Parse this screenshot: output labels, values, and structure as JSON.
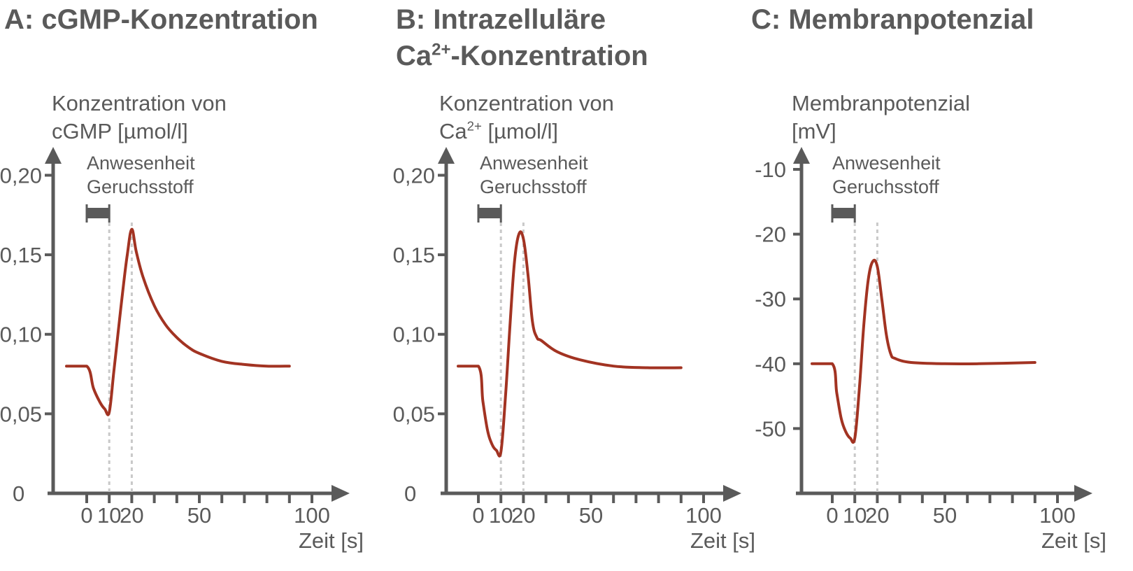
{
  "colors": {
    "curve": "#a23322",
    "axis": "#5a5a5a",
    "guide": "#c9c9c9",
    "bar": "#5a5a5a"
  },
  "panels": [
    {
      "title_lines": [
        "A: cGMP-Konzentration"
      ],
      "ylabel_lines": [
        "Konzentration von",
        "cGMP [µmol/l]"
      ],
      "annotation_lines": [
        "Anwesenheit",
        "Geruchsstoff"
      ],
      "xlabel": "Zeit [s]"
    },
    {
      "title_lines": [
        "B: Intrazelluläre",
        "Ca²⁺-Konzentration"
      ],
      "ylabel_lines": [
        "Konzentration von",
        "Ca²⁺ [µmol/l]"
      ],
      "annotation_lines": [
        "Anwesenheit",
        "Geruchsstoff"
      ],
      "xlabel": "Zeit [s]"
    },
    {
      "title_lines": [
        "C: Membranpotenzial"
      ],
      "ylabel_lines": [
        "Membranpotenzial",
        "[mV]"
      ],
      "annotation_lines": [
        "Anwesenheit",
        "Geruchsstoff"
      ],
      "xlabel": "Zeit [s]"
    }
  ],
  "chart_data": [
    {
      "type": "line",
      "title": "A: cGMP-Konzentration",
      "ylabel": "Konzentration von cGMP [µmol/l]",
      "xlabel": "Zeit [s]",
      "x_ticks": [
        0,
        10,
        20,
        50,
        100
      ],
      "y_ticks": [
        0,
        0.05,
        0.1,
        0.15,
        0.2
      ],
      "y_tick_labels": [
        "0",
        "0,05",
        "0,10",
        "0,15",
        "0,20"
      ],
      "xlim": [
        -16,
        115
      ],
      "ylim": [
        0,
        0.22
      ],
      "stimulus_interval": [
        0,
        10
      ],
      "guide_lines_x": [
        10,
        20
      ],
      "series": [
        {
          "x": [
            -9,
            0,
            3,
            6,
            8,
            10,
            12,
            14,
            16,
            18,
            20,
            22,
            25,
            30,
            35,
            40,
            45,
            50,
            60,
            70,
            80,
            90
          ],
          "y": [
            0.08,
            0.08,
            0.066,
            0.057,
            0.053,
            0.051,
            0.076,
            0.102,
            0.127,
            0.15,
            0.166,
            0.152,
            0.136,
            0.118,
            0.106,
            0.098,
            0.092,
            0.088,
            0.083,
            0.081,
            0.08,
            0.08
          ]
        }
      ]
    },
    {
      "type": "line",
      "title": "B: Intrazelluläre Ca²⁺-Konzentration",
      "ylabel": "Konzentration von Ca²⁺ [µmol/l]",
      "xlabel": "Zeit [s]",
      "x_ticks": [
        0,
        10,
        20,
        50,
        100
      ],
      "y_ticks": [
        0,
        0.05,
        0.1,
        0.15,
        0.2
      ],
      "y_tick_labels": [
        "0",
        "0,05",
        "0,10",
        "0,15",
        "0,20"
      ],
      "xlim": [
        -16,
        115
      ],
      "ylim": [
        0,
        0.22
      ],
      "stimulus_interval": [
        0,
        10
      ],
      "guide_lines_x": [
        10,
        20
      ],
      "series": [
        {
          "x": [
            -9,
            0,
            2,
            4,
            6,
            8,
            10,
            12,
            14,
            16,
            18,
            20,
            22,
            24,
            26,
            28,
            35,
            45,
            60,
            75,
            90
          ],
          "y": [
            0.08,
            0.08,
            0.058,
            0.04,
            0.031,
            0.027,
            0.026,
            0.06,
            0.105,
            0.145,
            0.163,
            0.16,
            0.138,
            0.108,
            0.098,
            0.096,
            0.089,
            0.084,
            0.08,
            0.079,
            0.079
          ]
        }
      ]
    },
    {
      "type": "line",
      "title": "C: Membranpotenzial",
      "ylabel": "Membranpotenzial [mV]",
      "xlabel": "Zeit [s]",
      "x_ticks": [
        0,
        10,
        20,
        50,
        100
      ],
      "y_ticks": [
        -50,
        -40,
        -30,
        -20,
        -10
      ],
      "y_tick_labels": [
        "-50",
        "-40",
        "-30",
        "-20",
        "-10"
      ],
      "xlim": [
        -16,
        115
      ],
      "ylim": [
        -60,
        -6
      ],
      "stimulus_interval": [
        0,
        10
      ],
      "guide_lines_x": [
        10,
        20
      ],
      "series": [
        {
          "x": [
            -9,
            0,
            2,
            4,
            6,
            8,
            10,
            12,
            14,
            16,
            18,
            20,
            22,
            24,
            26,
            28,
            35,
            50,
            65,
            90
          ],
          "y": [
            -40,
            -40,
            -44.5,
            -48.5,
            -50.5,
            -51.5,
            -51.5,
            -44,
            -34,
            -27,
            -24.2,
            -25,
            -30,
            -35.5,
            -38.5,
            -39.2,
            -39.8,
            -40,
            -40,
            -39.8
          ]
        }
      ]
    }
  ]
}
